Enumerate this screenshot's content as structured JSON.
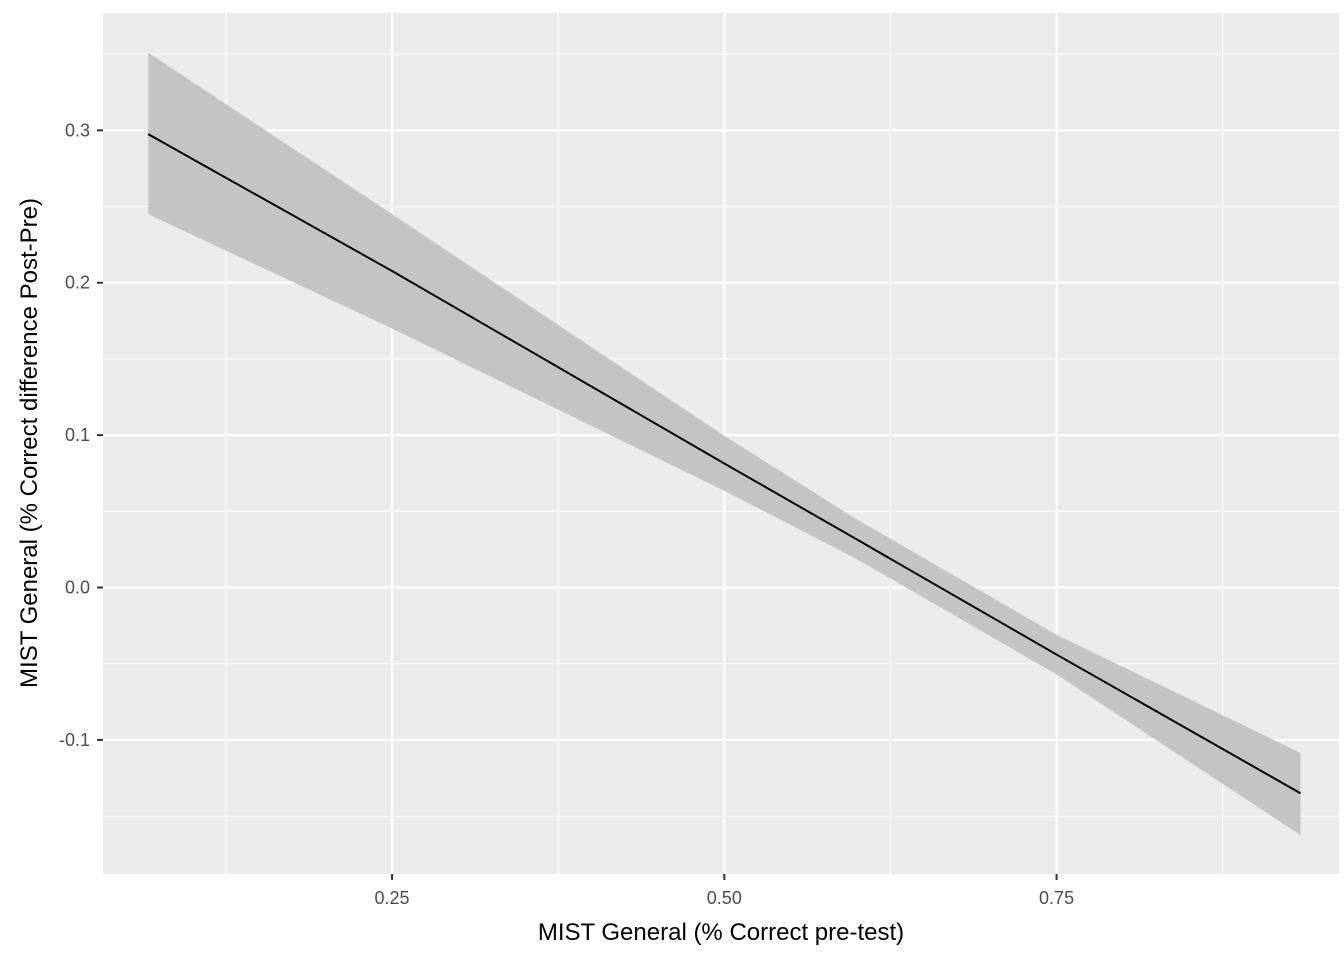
{
  "chart_data": {
    "type": "line",
    "title": "",
    "xlabel": "MIST General (% Correct pre-test)",
    "ylabel": "MIST General (% Correct difference Post-Pre)",
    "xlim": [
      0.0325,
      0.9625
    ],
    "ylim": [
      -0.188,
      0.377
    ],
    "x_ticks": [
      0.25,
      0.5,
      0.75
    ],
    "x_tick_labels": [
      "0.25",
      "0.50",
      "0.75"
    ],
    "y_ticks": [
      0.3,
      0.2,
      0.1,
      0.0,
      -0.1
    ],
    "y_tick_labels": [
      "0.3",
      "0.2",
      "0.1",
      "0.0",
      "-0.1"
    ],
    "grid": true,
    "colors": {
      "panel": "#ebebeb",
      "grid": "#ffffff",
      "line": "#000000",
      "band": "#c4c4c4"
    },
    "series": [
      {
        "x": [
          0.0665,
          0.25,
          0.5,
          0.6,
          0.75,
          0.9335
        ],
        "y": [
          0.2975,
          0.2077,
          0.0814,
          0.0314,
          -0.044,
          -0.135
        ],
        "ymin": [
          0.245,
          0.17,
          0.0635,
          0.0185,
          -0.057,
          -0.1625
        ],
        "ymax": [
          0.351,
          0.245,
          0.0995,
          0.0445,
          -0.031,
          -0.1085
        ]
      }
    ]
  }
}
